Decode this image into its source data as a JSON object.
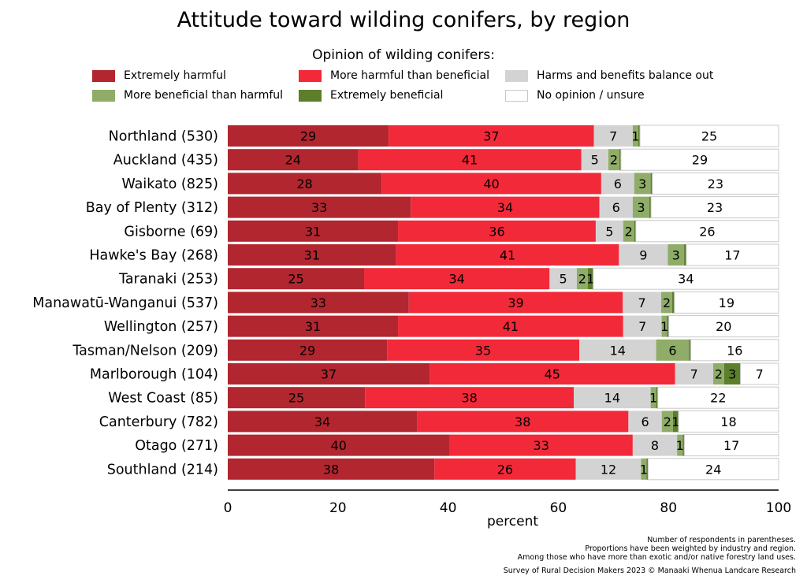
{
  "chart_data": {
    "type": "bar",
    "orientation": "horizontal",
    "stacked": true,
    "title": "Attitude toward wilding conifers, by region",
    "legend_title": "Opinion of wilding conifers:",
    "xlabel": "percent",
    "xlim": [
      0,
      100
    ],
    "xticks": [
      0,
      20,
      40,
      60,
      80,
      100
    ],
    "grid": false,
    "legend_position": "top",
    "categories": [
      "Northland (530)",
      "Auckland (435)",
      "Waikato (825)",
      "Bay of Plenty (312)",
      "Gisborne (69)",
      "Hawke's Bay (268)",
      "Taranaki (253)",
      "Manawatū-Wanganui (537)",
      "Wellington (257)",
      "Tasman/Nelson (209)",
      "Marlborough (104)",
      "West Coast (85)",
      "Canterbury (782)",
      "Otago (271)",
      "Southland (214)"
    ],
    "series": [
      {
        "name": "Extremely harmful",
        "color": "#b2262f",
        "text_color": "#000000",
        "values": [
          29,
          24,
          28,
          33,
          31,
          31,
          25,
          33,
          31,
          29,
          37,
          25,
          34,
          40,
          38
        ],
        "labels": [
          "29",
          "24",
          "28",
          "33",
          "31",
          "31",
          "25",
          "33",
          "31",
          "29",
          "37",
          "25",
          "34",
          "40",
          "38"
        ]
      },
      {
        "name": "More harmful than beneficial",
        "color": "#f22938",
        "text_color": "#000000",
        "values": [
          37,
          41,
          40,
          34,
          36,
          41,
          34,
          39,
          41,
          35,
          45,
          38,
          38,
          33,
          26
        ],
        "labels": [
          "37",
          "41",
          "40",
          "34",
          "36",
          "41",
          "34",
          "39",
          "41",
          "35",
          "45",
          "38",
          "38",
          "33",
          "26"
        ]
      },
      {
        "name": "Harms and benefits balance out",
        "color": "#d3d3d3",
        "text_color": "#000000",
        "values": [
          7,
          5,
          6,
          6,
          5,
          9,
          5,
          7,
          7,
          14,
          7,
          14,
          6,
          8,
          12
        ],
        "labels": [
          "7",
          "5",
          "6",
          "6",
          "5",
          "9",
          "5",
          "7",
          "7",
          "14",
          "7",
          "14",
          "6",
          "8",
          "12"
        ]
      },
      {
        "name": "More beneficial than harmful",
        "color": "#8fad68",
        "text_color": "#000000",
        "values": [
          1,
          2,
          3,
          3,
          2,
          3,
          2,
          2,
          1,
          6,
          2,
          1,
          2,
          1,
          1
        ],
        "labels": [
          "1",
          "2",
          "3",
          "3",
          "2",
          "3",
          "2",
          "2",
          "1",
          "6",
          "2",
          "1",
          "2",
          "1",
          "1"
        ]
      },
      {
        "name": "Extremely beneficial",
        "color": "#5d7f2b",
        "text_color": "#000000",
        "values": [
          0.3,
          0.3,
          0.3,
          0.3,
          0.3,
          0.4,
          1,
          0.4,
          0.3,
          0.3,
          3,
          0.3,
          1,
          0.3,
          0.3
        ],
        "labels": [
          "",
          "",
          "",
          "",
          "",
          "",
          "1",
          "",
          "",
          "",
          "3",
          "",
          "1",
          "",
          ""
        ]
      },
      {
        "name": "No opinion / unsure",
        "color": "#ffffff",
        "text_color": "#000000",
        "values": [
          25,
          29,
          23,
          23,
          26,
          17,
          34,
          19,
          20,
          16,
          7,
          22,
          18,
          17,
          24
        ],
        "labels": [
          "25",
          "29",
          "23",
          "23",
          "26",
          "17",
          "34",
          "19",
          "20",
          "16",
          "7",
          "22",
          "18",
          "17",
          "24"
        ]
      }
    ]
  },
  "notes": [
    "Number of respondents in parentheses.",
    "Proportions have been weighted by industry and region.",
    "Among those who have more than exotic and/or native forestry land uses."
  ],
  "source": "Survey of Rural Decision Makers 2023 © Manaaki Whenua Landcare Research"
}
